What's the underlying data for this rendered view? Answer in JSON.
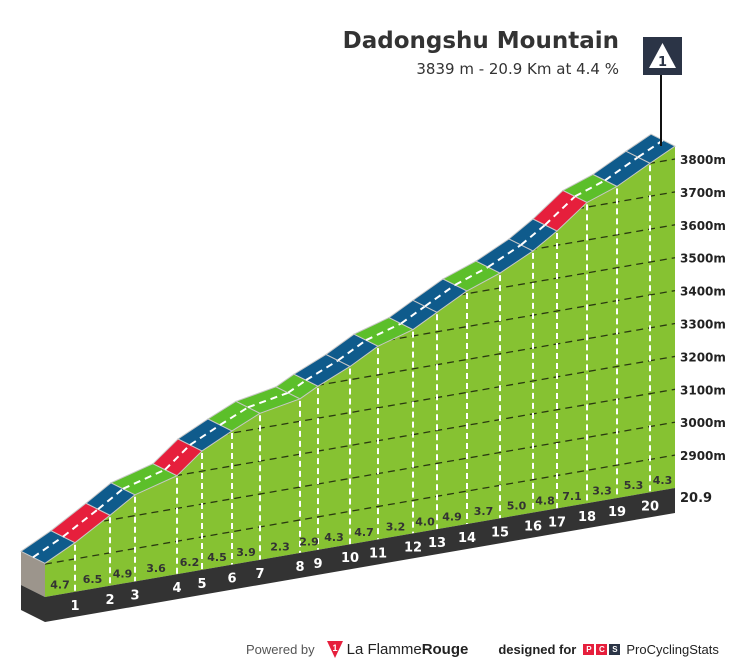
{
  "header": {
    "title": "Dadongshu Mountain",
    "subtitle": "3839 m - 20.9 Km at 4.4 %",
    "category_badge": "1"
  },
  "chart_data": {
    "type": "area",
    "title": "Dadongshu Mountain",
    "summit_elevation_m": 3839,
    "length_km": 20.9,
    "average_gradient_pct": 4.4,
    "km_labels": [
      "1",
      "2",
      "3",
      "4",
      "5",
      "6",
      "7",
      "8",
      "9",
      "10",
      "11",
      "12",
      "13",
      "14",
      "15",
      "16",
      "17",
      "18",
      "19",
      "20"
    ],
    "end_label": "20.9",
    "segment_gradients": [
      4.7,
      6.5,
      4.9,
      3.6,
      6.2,
      4.5,
      3.9,
      2.3,
      2.9,
      4.3,
      4.7,
      3.2,
      4.0,
      4.9,
      3.7,
      5.0,
      4.8,
      7.1,
      3.3,
      5.3,
      4.3
    ],
    "gradient_labels": [
      "4.7",
      "6.5",
      "4.9",
      "3.6",
      "6.2",
      "4.5",
      "3.9",
      "2.3",
      "2.9",
      "4.3",
      "4.7",
      "3.2",
      "4.0",
      "4.9",
      "3.7",
      "5.0",
      "4.8",
      "7.1",
      "3.3",
      "5.3",
      "4.3"
    ],
    "y_ticks": [
      2900,
      3000,
      3100,
      3200,
      3300,
      3400,
      3500,
      3600,
      3700,
      3800
    ],
    "y_tick_labels": [
      "2900m",
      "3000m",
      "3100m",
      "3200m",
      "3300m",
      "3400m",
      "3500m",
      "3600m",
      "3700m",
      "3800m"
    ],
    "ylim": [
      2800,
      3839
    ],
    "grid": true,
    "colors": {
      "easy": "#5cbf2a",
      "medium": "#0f5b8c",
      "hard": "#e61f3c",
      "face": "#86c232",
      "base": "#333333",
      "side": "#9c958c"
    },
    "color_thresholds_pct": {
      "medium_from": 4.0,
      "hard_from": 6.0
    }
  },
  "footer": {
    "powered_by": "Powered by",
    "brand_a": "La Flamme",
    "brand_b": "Rouge",
    "designed_for": "designed for",
    "pcs_letters": [
      "P",
      "C",
      "S"
    ],
    "pcs_name": "ProCyclingStats"
  }
}
